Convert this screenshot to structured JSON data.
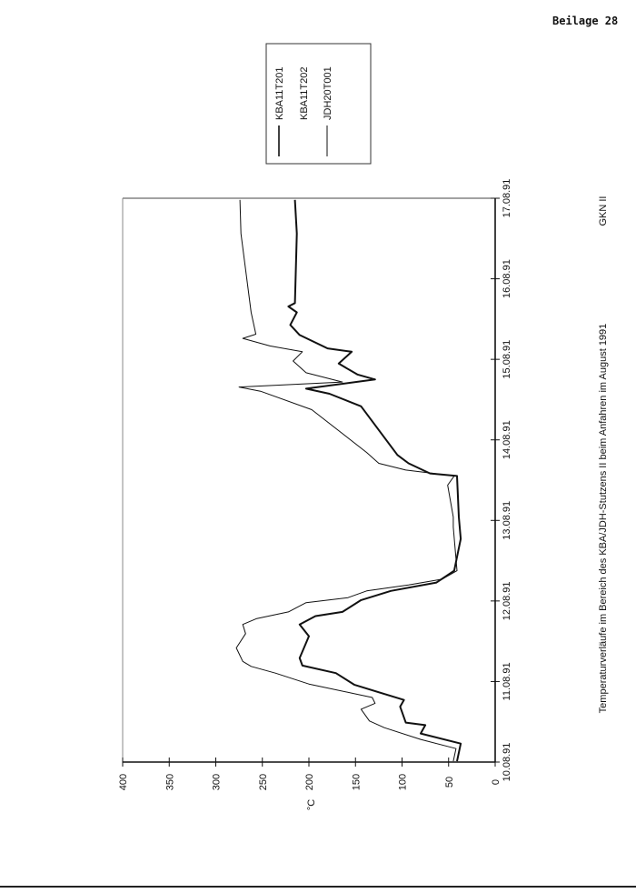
{
  "page_label": "Beilage 28",
  "chart_data": {
    "type": "line",
    "orientation": "rotated 90° counter-clockwise",
    "title": "Temperaturverläufe im Bereich des KBA/JDH-Stutzens II beim Anfahren im August 1991",
    "source_label": "GKN II",
    "ylabel": "°C",
    "xlabel": "",
    "ylim": [
      0,
      400
    ],
    "yticks": [
      "0",
      "50",
      "100",
      "150",
      "200",
      "250",
      "300",
      "350",
      "400"
    ],
    "xlim": [
      "1991-08-10T00:00",
      "1991-08-17T00:00"
    ],
    "xticks": [
      "10.08.91",
      "11.08.91",
      "12.08.91",
      "13.08.91",
      "14.08.91",
      "15.08.91",
      "16.08.91",
      "17.08.91"
    ],
    "grid": false,
    "legend_placement": "top-right",
    "legend": [
      "KBA11T201",
      "KBA11T202",
      "JDH20T001"
    ],
    "series": [
      {
        "name": "KBA11T201",
        "style": "thick",
        "points": [
          [
            "1991-08-10T00:15",
            41
          ],
          [
            "1991-08-10T05:30",
            37
          ],
          [
            "1991-08-10T08:30",
            80
          ],
          [
            "1991-08-10T11:00",
            75
          ],
          [
            "1991-08-10T11:45",
            96
          ],
          [
            "1991-08-10T16:30",
            102
          ],
          [
            "1991-08-10T18:30",
            98
          ],
          [
            "1991-08-10T23:00",
            151
          ],
          [
            "1991-08-11T02:30",
            171
          ],
          [
            "1991-08-11T04:45",
            207
          ],
          [
            "1991-08-11T07:00",
            210
          ],
          [
            "1991-08-11T13:30",
            200
          ],
          [
            "1991-08-11T17:00",
            210
          ],
          [
            "1991-08-11T19:30",
            193
          ],
          [
            "1991-08-11T20:45",
            164
          ],
          [
            "1991-08-12T00:15",
            144
          ],
          [
            "1991-08-12T03:00",
            112
          ],
          [
            "1991-08-12T05:30",
            63
          ],
          [
            "1991-08-12T09:00",
            44
          ],
          [
            "1991-08-12T18:30",
            37
          ],
          [
            "1991-08-13T01:00",
            39
          ],
          [
            "1991-08-13T13:15",
            41
          ],
          [
            "1991-08-13T14:00",
            70
          ],
          [
            "1991-08-13T17:00",
            93
          ],
          [
            "1991-08-13T19:30",
            105
          ],
          [
            "1991-08-14T10:00",
            144
          ],
          [
            "1991-08-14T13:45",
            178
          ],
          [
            "1991-08-14T15:15",
            203
          ],
          [
            "1991-08-14T18:00",
            129
          ],
          [
            "1991-08-14T19:30",
            148
          ],
          [
            "1991-08-14T22:45",
            168
          ],
          [
            "1991-08-15T02:15",
            154
          ],
          [
            "1991-08-15T03:15",
            180
          ],
          [
            "1991-08-15T07:15",
            210
          ],
          [
            "1991-08-15T10:15",
            220
          ],
          [
            "1991-08-15T14:00",
            213
          ],
          [
            "1991-08-15T15:45",
            222
          ],
          [
            "1991-08-15T16:45",
            215
          ],
          [
            "1991-08-16T13:30",
            213
          ],
          [
            "1991-08-16T23:30",
            215
          ]
        ]
      },
      {
        "name": "KBA11T202",
        "style": "thin",
        "points": []
      },
      {
        "name": "JDH20T001",
        "style": "thin",
        "points": [
          [
            "1991-08-10T00:15",
            45
          ],
          [
            "1991-08-10T04:00",
            42
          ],
          [
            "1991-08-10T06:45",
            80
          ],
          [
            "1991-08-10T10:15",
            119
          ],
          [
            "1991-08-10T12:15",
            135
          ],
          [
            "1991-08-10T15:45",
            144
          ],
          [
            "1991-08-10T17:30",
            129
          ],
          [
            "1991-08-10T19:15",
            132
          ],
          [
            "1991-08-10T23:15",
            200
          ],
          [
            "1991-08-11T02:30",
            236
          ],
          [
            "1991-08-11T04:30",
            262
          ],
          [
            "1991-08-11T06:00",
            271
          ],
          [
            "1991-08-11T10:00",
            278
          ],
          [
            "1991-08-11T14:15",
            268
          ],
          [
            "1991-08-11T17:00",
            271
          ],
          [
            "1991-08-11T18:45",
            256
          ],
          [
            "1991-08-11T20:45",
            222
          ],
          [
            "1991-08-11T23:30",
            203
          ],
          [
            "1991-08-12T01:00",
            158
          ],
          [
            "1991-08-12T03:00",
            138
          ],
          [
            "1991-08-12T04:45",
            93
          ],
          [
            "1991-08-12T06:30",
            57
          ],
          [
            "1991-08-12T09:00",
            41
          ],
          [
            "1991-08-12T22:00",
            45
          ],
          [
            "1991-08-13T01:00",
            45
          ],
          [
            "1991-08-13T10:30",
            51
          ],
          [
            "1991-08-13T13:15",
            44
          ],
          [
            "1991-08-13T15:00",
            96
          ],
          [
            "1991-08-13T17:00",
            125
          ],
          [
            "1991-08-13T20:15",
            138
          ],
          [
            "1991-08-14T09:00",
            197
          ],
          [
            "1991-08-14T14:30",
            252
          ],
          [
            "1991-08-14T15:45",
            275
          ],
          [
            "1991-08-14T17:15",
            164
          ],
          [
            "1991-08-14T20:00",
            203
          ],
          [
            "1991-08-14T23:30",
            217
          ],
          [
            "1991-08-15T02:15",
            207
          ],
          [
            "1991-08-15T04:00",
            242
          ],
          [
            "1991-08-15T06:15",
            271
          ],
          [
            "1991-08-15T07:30",
            257
          ],
          [
            "1991-08-15T14:00",
            262
          ],
          [
            "1991-08-16T13:30",
            273
          ],
          [
            "1991-08-16T23:30",
            274
          ]
        ]
      }
    ]
  }
}
